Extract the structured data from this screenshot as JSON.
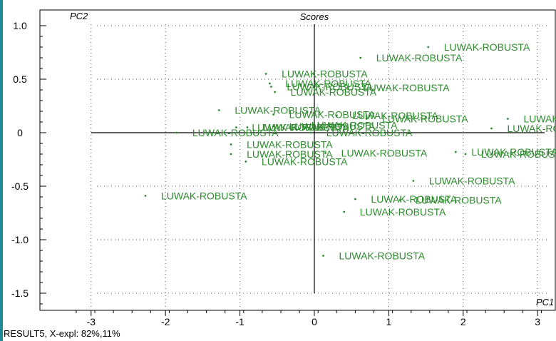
{
  "chart_data": {
    "type": "scatter",
    "title": "Scores",
    "xlabel": "PC1",
    "ylabel": "PC2",
    "xlim": [
      -3.2,
      3.2
    ],
    "ylim": [
      -1.6,
      1.02
    ],
    "x_ticks": [
      -3,
      -2,
      -1,
      0,
      1,
      2,
      3
    ],
    "y_ticks": [
      1.0,
      0.5,
      0,
      -0.5,
      -1.0,
      -1.5
    ],
    "y_tick_labels": [
      "1.0",
      "0.5",
      "0",
      "-0.5",
      "-1.0",
      "-1.5"
    ],
    "grid": true,
    "point_color": "#2e8b2e",
    "points": [
      {
        "x": 1.53,
        "y": 0.8,
        "label": "LUWAK-ROBUSTA"
      },
      {
        "x": 0.62,
        "y": 0.7,
        "label": "LUWAK-ROBUSTA"
      },
      {
        "x": -0.65,
        "y": 0.55,
        "label": "LUWAK-ROBUSTA"
      },
      {
        "x": -0.6,
        "y": 0.46,
        "label": "LUWAK-ROBUSTA"
      },
      {
        "x": -0.58,
        "y": 0.43,
        "label": "LUWAK-ROBUSTA"
      },
      {
        "x": -0.53,
        "y": 0.38,
        "label": "LUWAK-ROBUSTA"
      },
      {
        "x": 0.45,
        "y": 0.42,
        "label": "LUWAK-ROBUSTA"
      },
      {
        "x": -1.28,
        "y": 0.21,
        "label": "LUWAK-ROBUSTA"
      },
      {
        "x": -0.55,
        "y": 0.17,
        "label": "LUWAK-ROBUSTA"
      },
      {
        "x": 0.3,
        "y": 0.16,
        "label": "LUWAK-ROBUSTA"
      },
      {
        "x": 0.7,
        "y": 0.13,
        "label": "LUWAK-ROBUSTA"
      },
      {
        "x": 2.6,
        "y": 0.13,
        "label": "LUWAK-ROBUSTA"
      },
      {
        "x": -1.05,
        "y": 0.05,
        "label": "LUWAK-ROBUSTA"
      },
      {
        "x": -0.9,
        "y": 0.05,
        "label": "LUWAK-ROBUSTA"
      },
      {
        "x": -0.55,
        "y": 0.06,
        "label": "LUWAK-ROBUSTA"
      },
      {
        "x": -0.25,
        "y": 0.07,
        "label": "LUWAK-ROBUSTA"
      },
      {
        "x": 2.38,
        "y": 0.04,
        "label": "LUWAK-ROBUSTA"
      },
      {
        "x": -1.85,
        "y": 0.0,
        "label": "LUWAK-ROBUSTA"
      },
      {
        "x": -0.05,
        "y": 0.0,
        "label": "LUWAK-ROBUSTA"
      },
      {
        "x": -1.12,
        "y": -0.11,
        "label": "LUWAK-ROBUSTA"
      },
      {
        "x": -1.12,
        "y": -0.2,
        "label": "LUWAK-ROBUSTA"
      },
      {
        "x": 0.15,
        "y": -0.19,
        "label": "LUWAK-ROBUSTA"
      },
      {
        "x": 1.9,
        "y": -0.18,
        "label": "LUWAK-ROBUSTA"
      },
      {
        "x": 2.03,
        "y": -0.2,
        "label": "LUWAK-ROBUSTA"
      },
      {
        "x": -0.92,
        "y": -0.27,
        "label": "LUWAK-ROBUSTA"
      },
      {
        "x": 1.33,
        "y": -0.45,
        "label": "LUWAK-ROBUSTA"
      },
      {
        "x": -2.27,
        "y": -0.59,
        "label": "LUWAK-ROBUSTA"
      },
      {
        "x": 0.55,
        "y": -0.62,
        "label": "LUWAK-ROBUSTA"
      },
      {
        "x": 1.15,
        "y": -0.63,
        "label": "LUWAK-ROBUSTA"
      },
      {
        "x": 0.4,
        "y": -0.74,
        "label": "LUWAK-ROBUSTA"
      },
      {
        "x": 0.12,
        "y": -1.15,
        "label": "LUWAK-ROBUSTA"
      }
    ]
  },
  "footer": {
    "text": "RESULT5, X-expl: 82%,11%"
  }
}
